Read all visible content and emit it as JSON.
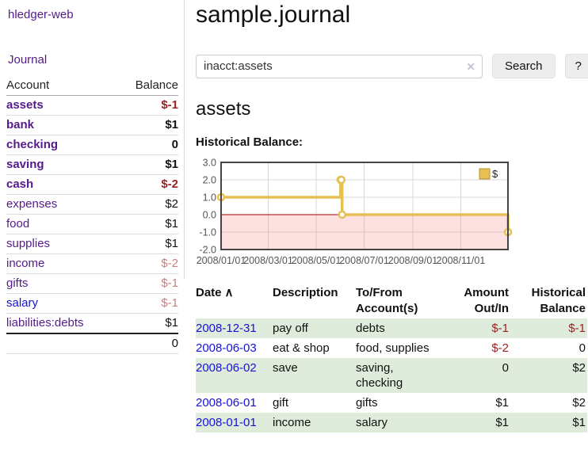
{
  "app": {
    "brand": "hledger-web",
    "nav_journal": "Journal"
  },
  "sidebar": {
    "header": {
      "account": "Account",
      "balance": "Balance"
    },
    "accounts": [
      {
        "name": "assets",
        "indent": 1,
        "bold": true,
        "balance": "$-1",
        "tone": "neg",
        "link": "purple"
      },
      {
        "name": "bank",
        "indent": 2,
        "bold": true,
        "balance": "$1",
        "tone": "pos",
        "link": "purple"
      },
      {
        "name": "checking",
        "indent": 3,
        "bold": true,
        "balance": "0",
        "tone": "pos",
        "link": "purple"
      },
      {
        "name": "saving",
        "indent": 3,
        "bold": true,
        "balance": "$1",
        "tone": "pos",
        "link": "purple"
      },
      {
        "name": "cash",
        "indent": 2,
        "bold": true,
        "balance": "$-2",
        "tone": "neg",
        "link": "purple"
      },
      {
        "name": "expenses",
        "indent": 1,
        "bold": false,
        "balance": "$2",
        "tone": "pos",
        "link": "purple"
      },
      {
        "name": "food",
        "indent": 2,
        "bold": false,
        "balance": "$1",
        "tone": "pos",
        "link": "purple"
      },
      {
        "name": "supplies",
        "indent": 2,
        "bold": false,
        "balance": "$1",
        "tone": "pos",
        "link": "purple"
      },
      {
        "name": "income",
        "indent": 1,
        "bold": false,
        "balance": "$-2",
        "tone": "neg-muted",
        "link": "purple"
      },
      {
        "name": "gifts",
        "indent": 2,
        "bold": false,
        "balance": "$-1",
        "tone": "neg-muted",
        "link": "purple"
      },
      {
        "name": "salary",
        "indent": 2,
        "bold": false,
        "balance": "$-1",
        "tone": "neg-muted",
        "link": "blue"
      },
      {
        "name": "liabilities:debts",
        "indent": 1,
        "bold": false,
        "balance": "$1",
        "tone": "pos",
        "link": "purple"
      }
    ],
    "total": "0"
  },
  "header": {
    "title": "sample.journal"
  },
  "search": {
    "value": "inacct:assets",
    "clear_icon": "✕",
    "button_label": "Search",
    "help_label": "?"
  },
  "account_page": {
    "title": "assets",
    "chart_label": "Historical Balance:"
  },
  "chart_data": {
    "type": "line",
    "style": "step-after",
    "title": "Historical Balance:",
    "series": [
      {
        "name": "$",
        "color": "#e6c054",
        "points": [
          [
            "2008-01-01",
            1
          ],
          [
            "2008-06-01",
            2
          ],
          [
            "2008-06-02",
            2
          ],
          [
            "2008-06-03",
            0
          ],
          [
            "2008-12-31",
            -1
          ]
        ]
      }
    ],
    "xlim": [
      "2008-01-01",
      "2008-12-31"
    ],
    "ylim": [
      -2,
      3
    ],
    "y_ticks": [
      3.0,
      2.0,
      1.0,
      0.0,
      -1.0,
      -2.0
    ],
    "x_ticks": [
      {
        "date": "2008-01-01",
        "label": "2008/01/01"
      },
      {
        "date": "2008-03-01",
        "label": "2008/03/01"
      },
      {
        "date": "2008-05-01",
        "label": "2008/05/01"
      },
      {
        "date": "2008-07-01",
        "label": "2008/07/01"
      },
      {
        "date": "2008-09-01",
        "label": "2008/09/01"
      },
      {
        "date": "2008-11-01",
        "label": "2008/11/01"
      }
    ],
    "grid": true,
    "legend": {
      "label": "$",
      "position": "top-right"
    },
    "negative_region": true,
    "colors": {
      "grid": "#d9d9d9",
      "border": "#444444",
      "zero_line": "#a40000",
      "negative_fill": "rgba(245,90,90,0.18)",
      "tick_text": "#555555"
    }
  },
  "register": {
    "columns": [
      "Date",
      "Description",
      "To/From\nAccount(s)",
      "Amount\nOut/In",
      "Historical\nBalance"
    ],
    "sort_icon": "∧",
    "rows": [
      {
        "date": "2008-12-31",
        "description": "pay off",
        "accounts": "debts",
        "amount": "$-1",
        "balance": "$-1"
      },
      {
        "date": "2008-06-03",
        "description": "eat & shop",
        "accounts": "food, supplies",
        "amount": "$-2",
        "balance": "0"
      },
      {
        "date": "2008-06-02",
        "description": "save",
        "accounts": "saving, checking",
        "amount": "0",
        "balance": "$2"
      },
      {
        "date": "2008-06-01",
        "description": "gift",
        "accounts": "gifts",
        "amount": "$1",
        "balance": "$2"
      },
      {
        "date": "2008-01-01",
        "description": "income",
        "accounts": "salary",
        "amount": "$1",
        "balance": "$1"
      }
    ]
  },
  "colors": {
    "link_purple": "#551a8b",
    "link_blue": "#1512da",
    "negative": "#9e2121",
    "negative_muted": "#c87f7f",
    "row_stripe_green": "#e0ecdb",
    "chart_line": "#e6c054"
  }
}
